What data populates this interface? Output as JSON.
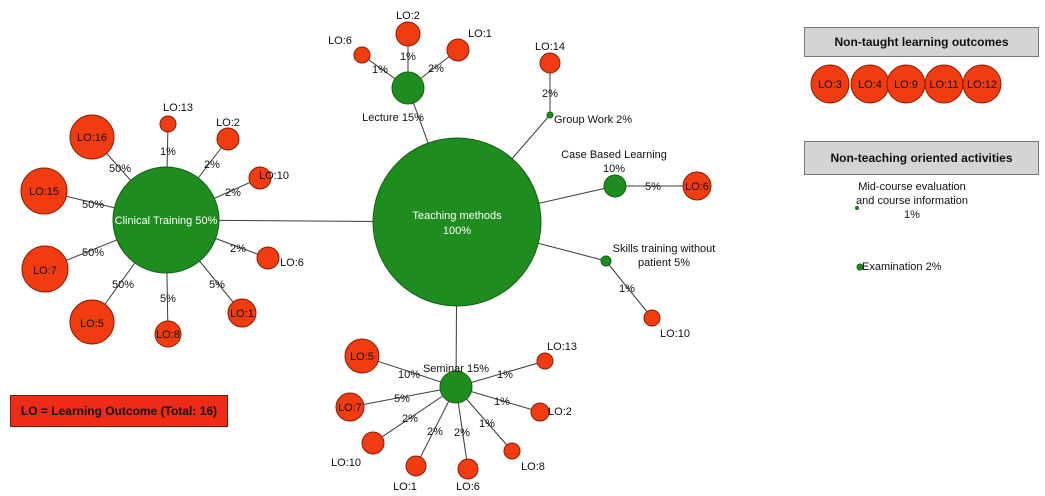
{
  "hub": {
    "label": "Teaching methods",
    "value": "100%"
  },
  "methods": [
    {
      "id": "clinical",
      "label": "Clinical Training 50%",
      "inside": true,
      "outcomes": [
        {
          "lo": "LO:16",
          "pct": "50%"
        },
        {
          "lo": "LO:13",
          "pct": "1%"
        },
        {
          "lo": "LO:2",
          "pct": "2%"
        },
        {
          "lo": "LO:10",
          "pct": "2%"
        },
        {
          "lo": "LO:6",
          "pct": "2%"
        },
        {
          "lo": "LO:1",
          "pct": "5%"
        },
        {
          "lo": "LO:8",
          "pct": "5%"
        },
        {
          "lo": "LO:5",
          "pct": "50%"
        },
        {
          "lo": "LO:7",
          "pct": "50%"
        },
        {
          "lo": "LO:15",
          "pct": "50%"
        }
      ]
    },
    {
      "id": "lecture",
      "label": "Lecture 15%",
      "outcomes": [
        {
          "lo": "LO:6",
          "pct": "1%"
        },
        {
          "lo": "LO:2",
          "pct": "1%"
        },
        {
          "lo": "LO:1",
          "pct": "2%"
        }
      ]
    },
    {
      "id": "group",
      "label": "Group Work 2%",
      "outcomes": [
        {
          "lo": "LO:14",
          "pct": "2%"
        }
      ]
    },
    {
      "id": "case",
      "label": [
        "Case Based Learning",
        "10%"
      ],
      "outcomes": [
        {
          "lo": "LO:6",
          "pct": "5%"
        }
      ]
    },
    {
      "id": "skills",
      "label": [
        "Skills training without",
        "patient 5%"
      ],
      "outcomes": [
        {
          "lo": "LO:10",
          "pct": "1%"
        }
      ]
    },
    {
      "id": "seminar",
      "label": "Seminar 15%",
      "outcomes": [
        {
          "lo": "LO:5",
          "pct": "10%"
        },
        {
          "lo": "LO:13",
          "pct": "1%"
        },
        {
          "lo": "LO:2",
          "pct": "1%"
        },
        {
          "lo": "LO:8",
          "pct": "1%"
        },
        {
          "lo": "LO:6",
          "pct": "2%"
        },
        {
          "lo": "LO:1",
          "pct": "2%"
        },
        {
          "lo": "LO:10",
          "pct": "2%"
        },
        {
          "lo": "LO:7",
          "pct": "5%"
        }
      ]
    }
  ],
  "non_taught": {
    "title": "Non-taught learning outcomes",
    "items": [
      "LO:3",
      "LO:4",
      "LO:9",
      "LO:11",
      "LO:12"
    ]
  },
  "non_teaching": {
    "title": "Non-teaching oriented activities",
    "items": [
      {
        "label": "Mid-course evaluation and course information",
        "value": "1%"
      },
      {
        "label": "Examination 2%"
      }
    ]
  },
  "legend": {
    "text": "LO = Learning Outcome (Total: 16)"
  },
  "colors": {
    "method": "#1f8c1f",
    "outcome": "#f03c10"
  }
}
